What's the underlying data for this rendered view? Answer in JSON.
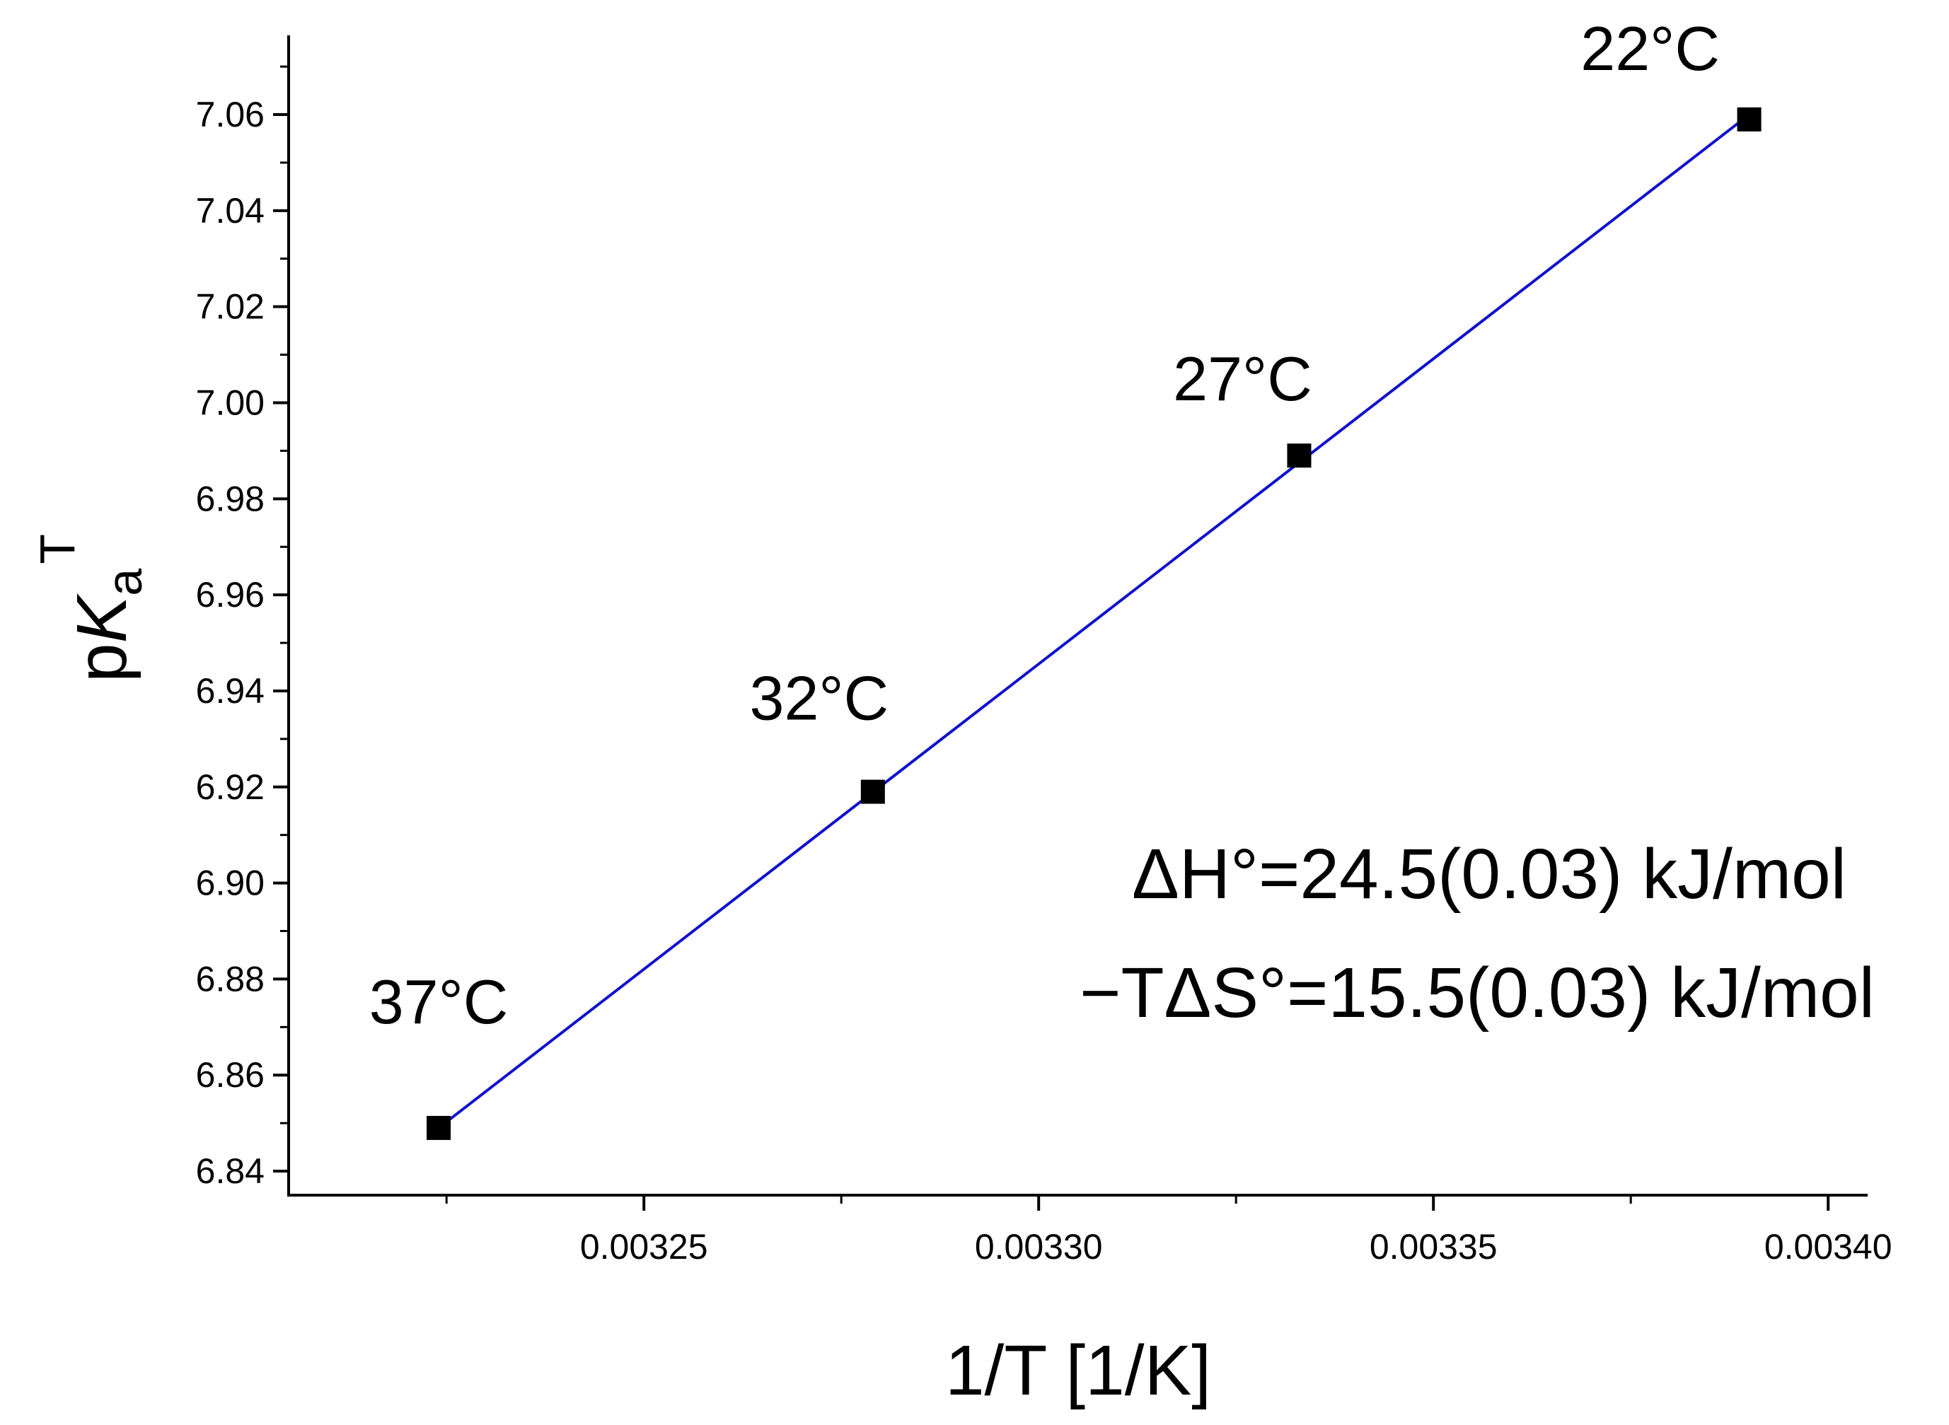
{
  "chart_data": {
    "type": "scatter",
    "title": "",
    "xlabel": "1/T [1/K]",
    "ylabel": {
      "base": "p",
      "italic": "K",
      "subscript": "a",
      "superscript": "T"
    },
    "xlim": [
      0.003205,
      0.003405
    ],
    "ylim": [
      6.835,
      7.0765
    ],
    "x_ticks": [
      "0.00325",
      "0.00330",
      "0.00335",
      "0.00340"
    ],
    "x_tick_values": [
      0.00325,
      0.0033,
      0.00335,
      0.0034
    ],
    "y_ticks": [
      "6.84",
      "6.86",
      "6.88",
      "6.90",
      "6.92",
      "6.94",
      "6.96",
      "6.98",
      "7.00",
      "7.02",
      "7.04",
      "7.06"
    ],
    "y_tick_values": [
      6.84,
      6.86,
      6.88,
      6.9,
      6.92,
      6.94,
      6.96,
      6.98,
      7.0,
      7.02,
      7.04,
      7.06
    ],
    "grid": false,
    "series": [
      {
        "marker": "square",
        "marker_color": "#000000",
        "x": [
          0.003224,
          0.003279,
          0.003333,
          0.00339
        ],
        "y": [
          6.849,
          6.919,
          6.989,
          7.059
        ],
        "point_labels": [
          "37°C",
          "32°C",
          "27°C",
          "22°C"
        ]
      }
    ],
    "fit_line": {
      "color": "#1010cc",
      "x": [
        0.003224,
        0.00339
      ],
      "y": [
        6.849,
        7.06
      ]
    },
    "annotations": [
      "ΔH°=24.5(0.03) kJ/mol",
      "−TΔS°=15.5(0.03) kJ/mol"
    ]
  }
}
